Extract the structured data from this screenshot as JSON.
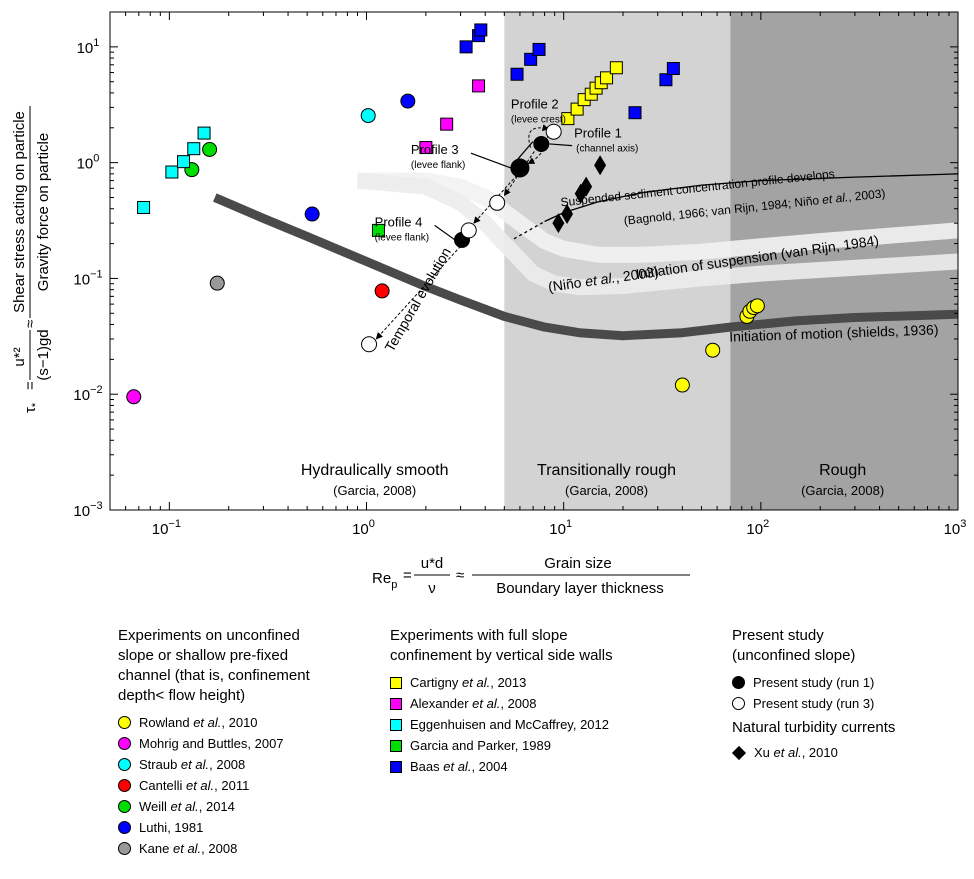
{
  "chart_data": {
    "type": "scatter",
    "x_scale": "log",
    "y_scale": "log",
    "xlim": [
      0.05,
      1000
    ],
    "ylim": [
      0.001,
      20
    ],
    "x_ticks": [
      {
        "v": 0.1,
        "m": "10",
        "e": "−1"
      },
      {
        "v": 1,
        "m": "10",
        "e": "0"
      },
      {
        "v": 10,
        "m": "10",
        "e": "1"
      },
      {
        "v": 100,
        "m": "10",
        "e": "2"
      },
      {
        "v": 1000,
        "m": "10",
        "e": "3"
      }
    ],
    "y_ticks": [
      {
        "v": 0.001,
        "m": "10",
        "e": "−3"
      },
      {
        "v": 0.01,
        "m": "10",
        "e": "−2"
      },
      {
        "v": 0.1,
        "m": "10",
        "e": "−1"
      },
      {
        "v": 1,
        "m": "10",
        "e": "0"
      },
      {
        "v": 10,
        "m": "10",
        "e": "1"
      }
    ],
    "regions": [
      {
        "name": "Hydraulically smooth",
        "ref": "(Garcia, 2008)",
        "x_from": 0.05,
        "x_to": 5,
        "color": "#ffffff",
        "label_x": 1.1
      },
      {
        "name": "Transitionally rough",
        "ref": "(Garcia, 2008)",
        "x_from": 5,
        "x_to": 70,
        "color": "#d3d3d3",
        "label_x": 16.5
      },
      {
        "name": "Rough",
        "ref": "(Garcia, 2008)",
        "x_from": 70,
        "x_to": 1000,
        "color": "#a3a3a3",
        "label_x": 260
      }
    ],
    "xlabel": {
      "prefix": "Re",
      "sub": "p",
      "eq1": "=",
      "num": "u*d",
      "den": "ν",
      "approx": "≈",
      "num2": "Grain size",
      "den2": "Boundary layer thickness"
    },
    "ylabel": {
      "prefix": "τ",
      "sub": "*",
      "eq1": "=",
      "num": "u*²",
      "den": "(s−1)gd",
      "approx": "≈",
      "num2": "Shear stress acting on particle",
      "den2": "Gravity force on particle"
    },
    "curves": {
      "shields": {
        "label": "Initiation of motion (shields, 1936)",
        "x": [
          0.17,
          0.3,
          0.5,
          1,
          2,
          3,
          5,
          8,
          12,
          20,
          40,
          70,
          150,
          300,
          1000
        ],
        "y": [
          0.5,
          0.33,
          0.23,
          0.14,
          0.085,
          0.065,
          0.047,
          0.038,
          0.034,
          0.032,
          0.034,
          0.038,
          0.043,
          0.046,
          0.049
        ]
      },
      "van_rijn": {
        "label": "Initiation of suspension (van Rijn, 1984)",
        "x": [
          0.9,
          2,
          3,
          4,
          5,
          6,
          8,
          10,
          15,
          25,
          50,
          100,
          200,
          1000
        ],
        "y": [
          0.7,
          0.7,
          0.62,
          0.5,
          0.38,
          0.3,
          0.21,
          0.18,
          0.16,
          0.16,
          0.17,
          0.19,
          0.21,
          0.26
        ]
      },
      "nino": {
        "label_pre": "(Niño ",
        "label_it": "et al.",
        "label_post": ", 2003)",
        "x": [
          0.9,
          2,
          3,
          4,
          5,
          6,
          7,
          9,
          12,
          20,
          50,
          100,
          1000
        ],
        "y": [
          0.7,
          0.62,
          0.45,
          0.3,
          0.2,
          0.145,
          0.11,
          0.09,
          0.084,
          0.086,
          0.1,
          0.11,
          0.14
        ]
      },
      "suspended": {
        "label": "Suspended sediment concentration profile develops",
        "label2_pre": "(Bagnold, 1966; van Rijn, 1984; Niño ",
        "label2_it": "et al.",
        "label2_post": ", 2003)",
        "x": [
          8,
          10,
          15,
          25,
          50,
          100,
          300,
          1000
        ],
        "y": [
          0.31,
          0.37,
          0.46,
          0.55,
          0.64,
          0.7,
          0.75,
          0.8
        ]
      }
    },
    "series": [
      {
        "name": "Rowland et al., 2010",
        "marker": "circle",
        "color": "#ffff00",
        "points": [
          [
            40,
            0.012
          ],
          [
            57,
            0.024
          ],
          [
            85,
            0.047
          ],
          [
            88,
            0.052
          ],
          [
            92,
            0.056
          ],
          [
            96,
            0.058
          ]
        ]
      },
      {
        "name": "Mohrig and Buttles, 2007",
        "marker": "circle",
        "color": "#ff00ff",
        "points": [
          [
            0.066,
            0.0095
          ]
        ]
      },
      {
        "name": "Straub et al., 2008",
        "marker": "circle",
        "color": "#00ffff",
        "points": [
          [
            1.02,
            2.55
          ]
        ]
      },
      {
        "name": "Cantelli et al., 2011",
        "marker": "circle",
        "color": "#ff0000",
        "points": [
          [
            1.2,
            0.078
          ]
        ]
      },
      {
        "name": "Weill et al., 2014",
        "marker": "circle",
        "color": "#00dd00",
        "points": [
          [
            0.13,
            0.87
          ],
          [
            0.16,
            1.3
          ]
        ]
      },
      {
        "name": "Luthi, 1981",
        "marker": "circle",
        "color": "#0000ff",
        "points": [
          [
            0.53,
            0.36
          ],
          [
            1.62,
            3.4
          ]
        ]
      },
      {
        "name": "Kane et al., 2008",
        "marker": "circle",
        "color": "#999999",
        "points": [
          [
            0.175,
            0.091
          ]
        ]
      },
      {
        "name": "Cartigny et al., 2013",
        "marker": "square",
        "color": "#ffff00",
        "points": [
          [
            10.5,
            2.4
          ],
          [
            11.7,
            2.9
          ],
          [
            12.7,
            3.5
          ],
          [
            13.8,
            3.9
          ],
          [
            14.6,
            4.4
          ],
          [
            15.5,
            4.9
          ],
          [
            16.5,
            5.4
          ],
          [
            18.5,
            6.6
          ]
        ]
      },
      {
        "name": "Alexander et al., 2008",
        "marker": "square",
        "color": "#ff00ff",
        "points": [
          [
            2.0,
            1.35
          ],
          [
            2.55,
            2.15
          ],
          [
            3.7,
            4.6
          ]
        ]
      },
      {
        "name": "Eggenhuisen and McCaffrey, 2012",
        "marker": "square",
        "color": "#00ffff",
        "points": [
          [
            0.074,
            0.41
          ],
          [
            0.103,
            0.83
          ],
          [
            0.118,
            1.02
          ],
          [
            0.133,
            1.32
          ],
          [
            0.15,
            1.8
          ]
        ]
      },
      {
        "name": "Garcia and Parker, 1989",
        "marker": "square",
        "color": "#00dd00",
        "points": [
          [
            1.15,
            0.26
          ]
        ]
      },
      {
        "name": "Baas et al., 2004",
        "marker": "square",
        "color": "#0000ff",
        "points": [
          [
            3.2,
            10
          ],
          [
            3.7,
            12.5
          ],
          [
            3.8,
            14
          ],
          [
            5.8,
            5.8
          ],
          [
            6.8,
            7.8
          ],
          [
            7.5,
            9.5
          ],
          [
            23,
            2.7
          ],
          [
            33,
            5.2
          ],
          [
            36,
            6.5
          ]
        ]
      },
      {
        "name": "Present study (run 1)",
        "marker": "circle",
        "color": "#000000",
        "points": [
          [
            3.05,
            0.215
          ],
          [
            6.0,
            0.9
          ],
          [
            7.7,
            1.45
          ]
        ]
      },
      {
        "name": "Present study (run 3)",
        "marker": "circle",
        "color": "#ffffff",
        "points": [
          [
            1.03,
            0.027
          ],
          [
            3.3,
            0.26
          ],
          [
            4.6,
            0.45
          ],
          [
            8.9,
            1.85
          ]
        ]
      },
      {
        "name": "Xu et al., 2010",
        "marker": "diamond",
        "color": "#000000",
        "points": [
          [
            9.4,
            0.3
          ],
          [
            10.4,
            0.36
          ],
          [
            12.2,
            0.54
          ],
          [
            13.0,
            0.62
          ],
          [
            15.3,
            0.95
          ]
        ]
      }
    ],
    "annotations": [
      {
        "title": "Profile 1",
        "sub": "(channel axis)",
        "x": 11.3,
        "y": 1.43
      },
      {
        "title": "Profile 2",
        "sub": "(levee crest)",
        "x": 5.4,
        "y": 2.55
      },
      {
        "title": "Profile 3",
        "sub": "(levee flank)",
        "x": 1.68,
        "y": 1.03
      },
      {
        "title": "Profile 4",
        "sub": "(levee flank)",
        "x": 1.1,
        "y": 0.245
      }
    ],
    "temporal_label": "Temporal evolution"
  },
  "legend": {
    "col1": {
      "header": [
        "Experiments on unconfined",
        "slope or shallow pre-fixed",
        "channel (that is, confinement",
        "depth< flow height)"
      ],
      "items": [
        {
          "pre": "Rowland ",
          "it": "et al.",
          "post": ", 2010",
          "color": "#ffff00",
          "marker": "circle"
        },
        {
          "pre": "Mohrig and Buttles, 2007",
          "it": "",
          "post": "",
          "color": "#ff00ff",
          "marker": "circle"
        },
        {
          "pre": "Straub ",
          "it": "et al.",
          "post": ", 2008",
          "color": "#00ffff",
          "marker": "circle"
        },
        {
          "pre": "Cantelli ",
          "it": "et al.",
          "post": ", 2011",
          "color": "#ff0000",
          "marker": "circle"
        },
        {
          "pre": "Weill ",
          "it": "et al.",
          "post": ", 2014",
          "color": "#00dd00",
          "marker": "circle"
        },
        {
          "pre": "Luthi, 1981",
          "it": "",
          "post": "",
          "color": "#0000ff",
          "marker": "circle"
        },
        {
          "pre": "Kane ",
          "it": "et al.",
          "post": ", 2008",
          "color": "#999999",
          "marker": "circle"
        }
      ]
    },
    "col2": {
      "header": [
        "Experiments with full slope",
        "confinement by vertical side walls"
      ],
      "items": [
        {
          "pre": "Cartigny ",
          "it": "et al.",
          "post": ", 2013",
          "color": "#ffff00",
          "marker": "square"
        },
        {
          "pre": "Alexander ",
          "it": "et al.",
          "post": ", 2008",
          "color": "#ff00ff",
          "marker": "square"
        },
        {
          "pre": "Eggenhuisen and McCaffrey, 2012",
          "it": "",
          "post": "",
          "color": "#00ffff",
          "marker": "square"
        },
        {
          "pre": "Garcia and Parker, 1989",
          "it": "",
          "post": "",
          "color": "#00dd00",
          "marker": "square"
        },
        {
          "pre": "Baas ",
          "it": "et al.",
          "post": ", 2004",
          "color": "#0000ff",
          "marker": "square"
        }
      ]
    },
    "col3": {
      "header": [
        "Present study",
        "(unconfined slope)"
      ],
      "items": [
        {
          "pre": "Present study (run 1)",
          "it": "",
          "post": "",
          "color": "#000000",
          "marker": "circle"
        },
        {
          "pre": "Present study (run 3)",
          "it": "",
          "post": "",
          "color": "#ffffff",
          "marker": "circle"
        }
      ],
      "subheader": "Natural turbidity currents",
      "items2": [
        {
          "pre": "Xu ",
          "it": "et al.",
          "post": ", 2010",
          "color": "#000000",
          "marker": "diamond"
        }
      ]
    }
  }
}
